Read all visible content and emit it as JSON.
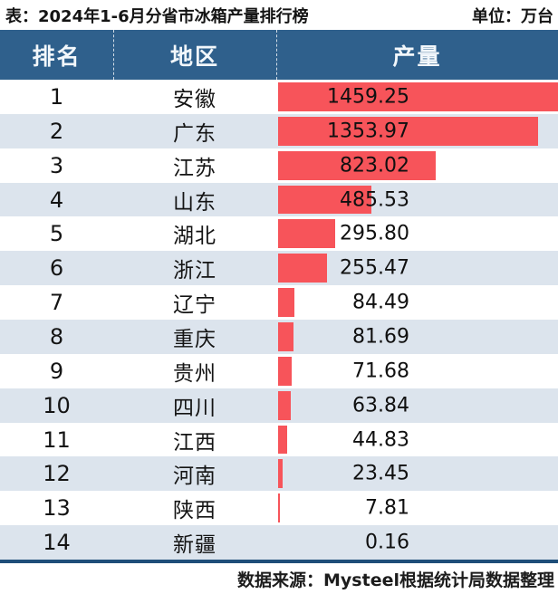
{
  "title": "表：2024年1-6月分省市冰箱产量排行榜",
  "unit": "单位：万台",
  "table": {
    "headers": [
      "排名",
      "地区",
      "产量"
    ]
  },
  "footer": "数据来源：Mysteel根据统计局数据整理",
  "colors": {
    "header_bg": "#2F608C",
    "bar": "#F7545A",
    "row_alt": "#DCE4ED",
    "bottom_line": "#1E4E79"
  },
  "chart_data": {
    "type": "bar",
    "title": "2024年1-6月分省市冰箱产量排行榜",
    "unit": "万台",
    "orientation": "horizontal",
    "ranks": [
      1,
      2,
      3,
      4,
      5,
      6,
      7,
      8,
      9,
      10,
      11,
      12,
      13,
      14
    ],
    "categories": [
      "安徽",
      "广东",
      "江苏",
      "山东",
      "湖北",
      "浙江",
      "辽宁",
      "重庆",
      "贵州",
      "四川",
      "江西",
      "河南",
      "陕西",
      "新疆"
    ],
    "values": [
      1459.25,
      1353.97,
      823.02,
      485.53,
      295.8,
      255.47,
      84.49,
      81.69,
      71.68,
      63.84,
      44.83,
      23.45,
      7.81,
      0.16
    ],
    "xlim": [
      0,
      1459.25
    ],
    "value_decimals": 2
  }
}
